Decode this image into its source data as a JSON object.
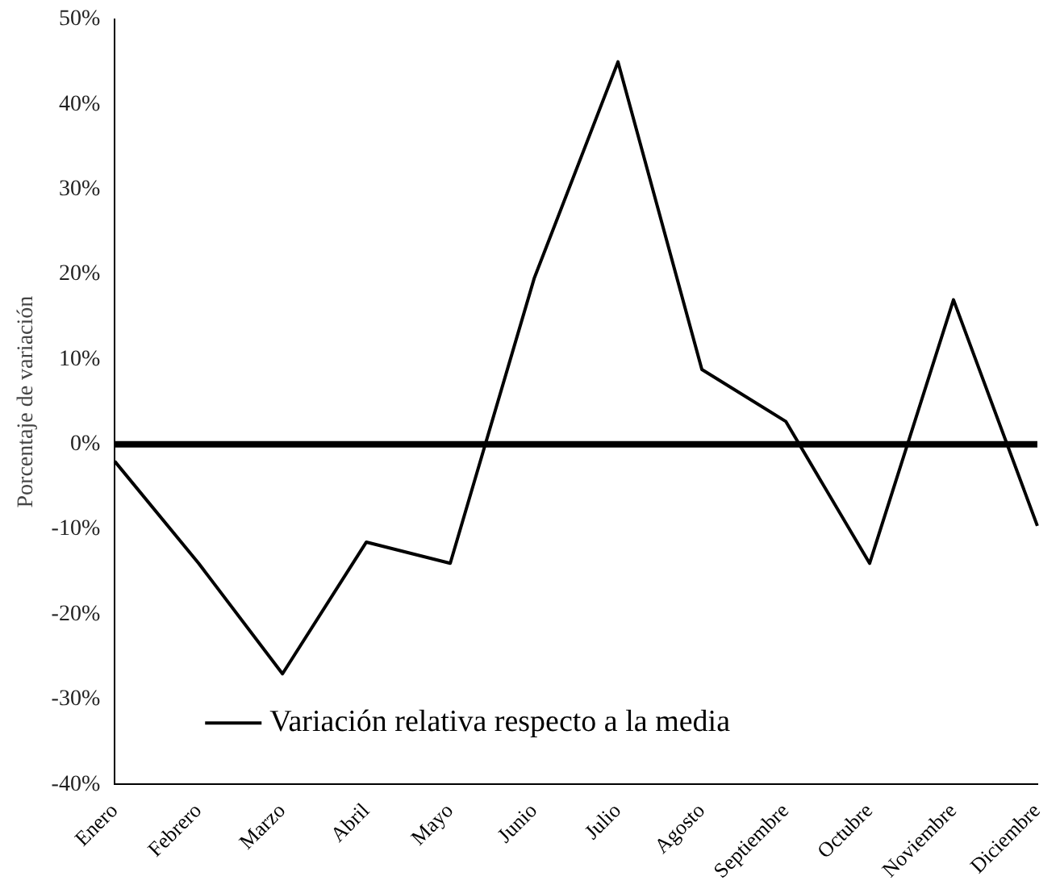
{
  "chart_data": {
    "type": "line",
    "ylabel": "Porcentaje de variación",
    "categories": [
      "Enero",
      "Febrero",
      "Marzo",
      "Abril",
      "Mayo",
      "Junio",
      "Julio",
      "Agosto",
      "Septiembre",
      "Octubre",
      "Noviembre",
      "Diciembre"
    ],
    "series": [
      {
        "name": "Variación relativa respecto a la media",
        "color": "#000000",
        "values": [
          -2,
          -14,
          -27,
          -11.5,
          -14,
          19.5,
          45,
          8.8,
          2.7,
          -14,
          17,
          -9.6
        ]
      }
    ],
    "ylim": [
      -40,
      50
    ],
    "yticks": [
      {
        "value": -40,
        "label": "-40%"
      },
      {
        "value": -30,
        "label": "-30%"
      },
      {
        "value": -20,
        "label": "-20%"
      },
      {
        "value": -10,
        "label": "-10%"
      },
      {
        "value": 0,
        "label": "0%"
      },
      {
        "value": 10,
        "label": "10%"
      },
      {
        "value": 20,
        "label": "20%"
      },
      {
        "value": 30,
        "label": "30%"
      },
      {
        "value": 40,
        "label": "40%"
      },
      {
        "value": 50,
        "label": "50%"
      }
    ],
    "ref_lines": [
      {
        "axis": "y",
        "value": 0,
        "color": "#000000"
      }
    ],
    "grid": false,
    "legend": "bottom left",
    "marker": "none",
    "line_style": "solid"
  }
}
